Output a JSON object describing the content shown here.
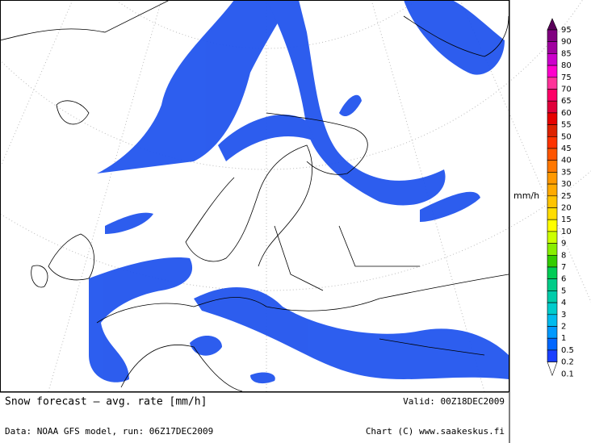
{
  "header": {
    "title": "Snow forecast – avg. rate [mm/h]",
    "valid": "Valid: 00Z18DEC2009"
  },
  "footer": {
    "source": "Data: NOAA GFS model, run: 06Z17DEC2009",
    "credit": "Chart (C) www.saakeskus.fi"
  },
  "legend": {
    "unit": "mm/h",
    "levels": [
      {
        "label": "95",
        "color": "#5a005a"
      },
      {
        "label": "90",
        "color": "#800080"
      },
      {
        "label": "85",
        "color": "#a000a0"
      },
      {
        "label": "80",
        "color": "#cc00cc"
      },
      {
        "label": "75",
        "color": "#ff00cc"
      },
      {
        "label": "70",
        "color": "#ff3399"
      },
      {
        "label": "65",
        "color": "#ff0066"
      },
      {
        "label": "60",
        "color": "#e0003a"
      },
      {
        "label": "55",
        "color": "#e60000"
      },
      {
        "label": "50",
        "color": "#dd2200"
      },
      {
        "label": "45",
        "color": "#ff3300"
      },
      {
        "label": "40",
        "color": "#ff5500"
      },
      {
        "label": "35",
        "color": "#ff7700"
      },
      {
        "label": "30",
        "color": "#ff9900"
      },
      {
        "label": "25",
        "color": "#ffaa00"
      },
      {
        "label": "20",
        "color": "#ffc400"
      },
      {
        "label": "15",
        "color": "#ffdd00"
      },
      {
        "label": "10",
        "color": "#ffff00"
      },
      {
        "label": "9",
        "color": "#ccff00"
      },
      {
        "label": "8",
        "color": "#88ee00"
      },
      {
        "label": "7",
        "color": "#33cc00"
      },
      {
        "label": "6",
        "color": "#00cc55"
      },
      {
        "label": "5",
        "color": "#00cc88"
      },
      {
        "label": "4",
        "color": "#00ccaa"
      },
      {
        "label": "3",
        "color": "#00cccc"
      },
      {
        "label": "2",
        "color": "#00bbee"
      },
      {
        "label": "1",
        "color": "#0099ff"
      },
      {
        "label": "0.5",
        "color": "#0066ff"
      },
      {
        "label": "0.2",
        "color": "#1a3fff"
      },
      {
        "label": "0.1",
        "color": "#ffffff"
      }
    ]
  }
}
